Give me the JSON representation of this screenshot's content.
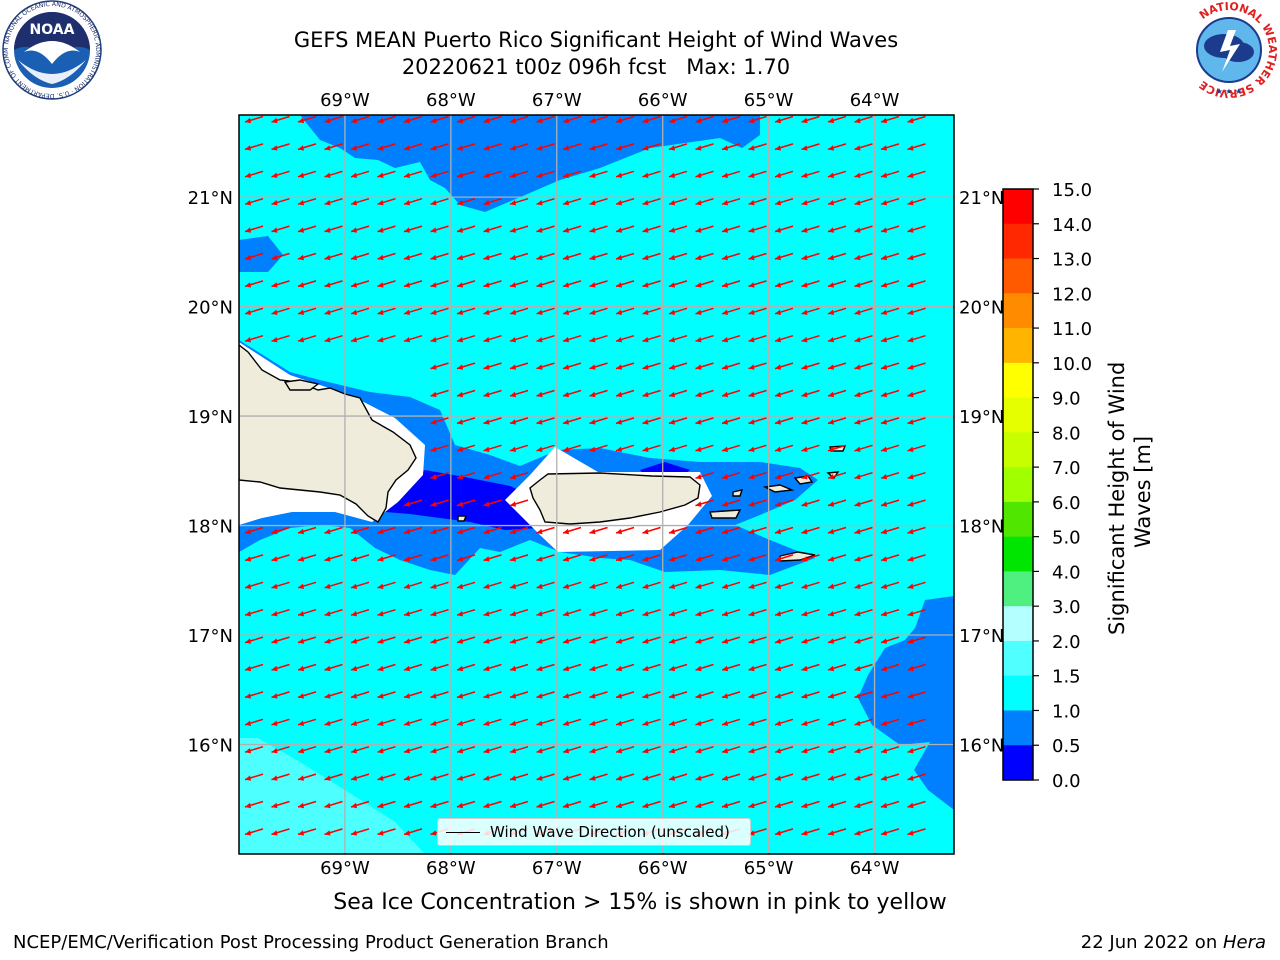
{
  "title": {
    "line1": "GEFS MEAN Puerto Rico Significant Height of Wind Waves",
    "line2": "20220621 t00z 096h fcst   Max: 1.70"
  },
  "map": {
    "lon_labels": [
      "69°W",
      "68°W",
      "67°W",
      "66°W",
      "65°W",
      "64°W"
    ],
    "lat_labels": [
      "21°N",
      "20°N",
      "19°N",
      "18°N",
      "17°N",
      "16°N"
    ],
    "extent": {
      "lon_min": -70.0,
      "lon_max": -63.25,
      "lat_min": 15.0,
      "lat_max": 21.75
    },
    "colors": {
      "ocean_main": "#00ffff",
      "band_0_5_1": "#0080ff",
      "band_0_0_5": "#0000ff",
      "band_1_5_2": "#4dffff",
      "land": "#efecdc",
      "arrow": "#ff0000",
      "grid": "#b0b0b0"
    },
    "arrow_direction": "toward WSW"
  },
  "legend": {
    "label": "Wind Wave Direction (unscaled)"
  },
  "colorbar": {
    "title": "Significant Height of Wind Waves [m]",
    "title_line1": "Significant Height of Wind",
    "title_line2": "Waves [m]",
    "ticks": [
      "15.0",
      "14.0",
      "13.0",
      "12.0",
      "11.0",
      "10.0",
      "9.0",
      "8.0",
      "7.0",
      "6.0",
      "5.0",
      "4.0",
      "3.0",
      "2.0",
      "1.5",
      "1.0",
      "0.5",
      "0.0"
    ],
    "bands": [
      {
        "range": "14.0-15.0",
        "color": "#ff0000"
      },
      {
        "range": "13.0-14.0",
        "color": "#ff2800"
      },
      {
        "range": "12.0-13.0",
        "color": "#ff5a00"
      },
      {
        "range": "11.0-12.0",
        "color": "#ff8c00"
      },
      {
        "range": "10.0-11.0",
        "color": "#ffb400"
      },
      {
        "range": "9.0-10.0",
        "color": "#ffff00"
      },
      {
        "range": "8.0-9.0",
        "color": "#e6ff00"
      },
      {
        "range": "7.0-8.0",
        "color": "#c8ff00"
      },
      {
        "range": "6.0-7.0",
        "color": "#a0ff00"
      },
      {
        "range": "5.0-6.0",
        "color": "#50e600"
      },
      {
        "range": "4.0-5.0",
        "color": "#00e600"
      },
      {
        "range": "3.0-4.0",
        "color": "#50f080"
      },
      {
        "range": "2.0-3.0",
        "color": "#b4ffff"
      },
      {
        "range": "1.5-2.0",
        "color": "#50ffff"
      },
      {
        "range": "1.0-1.5",
        "color": "#00ffff"
      },
      {
        "range": "0.5-1.0",
        "color": "#0080ff"
      },
      {
        "range": "0.0-0.5",
        "color": "#0000ff"
      }
    ]
  },
  "caption": "Sea Ice Concentration > 15% is shown in pink to yellow",
  "footer": {
    "left": "NCEP/EMC/Verification Post Processing Product Generation Branch",
    "right_date": "22 Jun 2022 on ",
    "right_host": "Hera"
  },
  "logos": {
    "noaa": {
      "text": "NOAA",
      "ring_text": "NATIONAL OCEANIC AND ATMOSPHERIC ADMINISTRATION · U.S. DEPARTMENT OF COMMERCE"
    },
    "nws": {
      "ring_text": "NATIONAL WEATHER SERVICE"
    }
  }
}
